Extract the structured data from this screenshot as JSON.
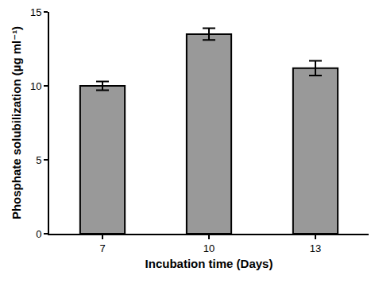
{
  "chart_data": {
    "type": "bar",
    "x_label": "Incubation time (Days)",
    "y_label": "Phosphate solubilization (µg ml⁻¹)",
    "categories": [
      "7",
      "10",
      "13"
    ],
    "values": [
      10.0,
      13.5,
      11.2
    ],
    "errors": [
      0.3,
      0.4,
      0.5
    ],
    "color": "#999999",
    "ylim": [
      0,
      15
    ],
    "yticks": [
      0,
      5,
      10,
      15
    ],
    "grid": false
  }
}
